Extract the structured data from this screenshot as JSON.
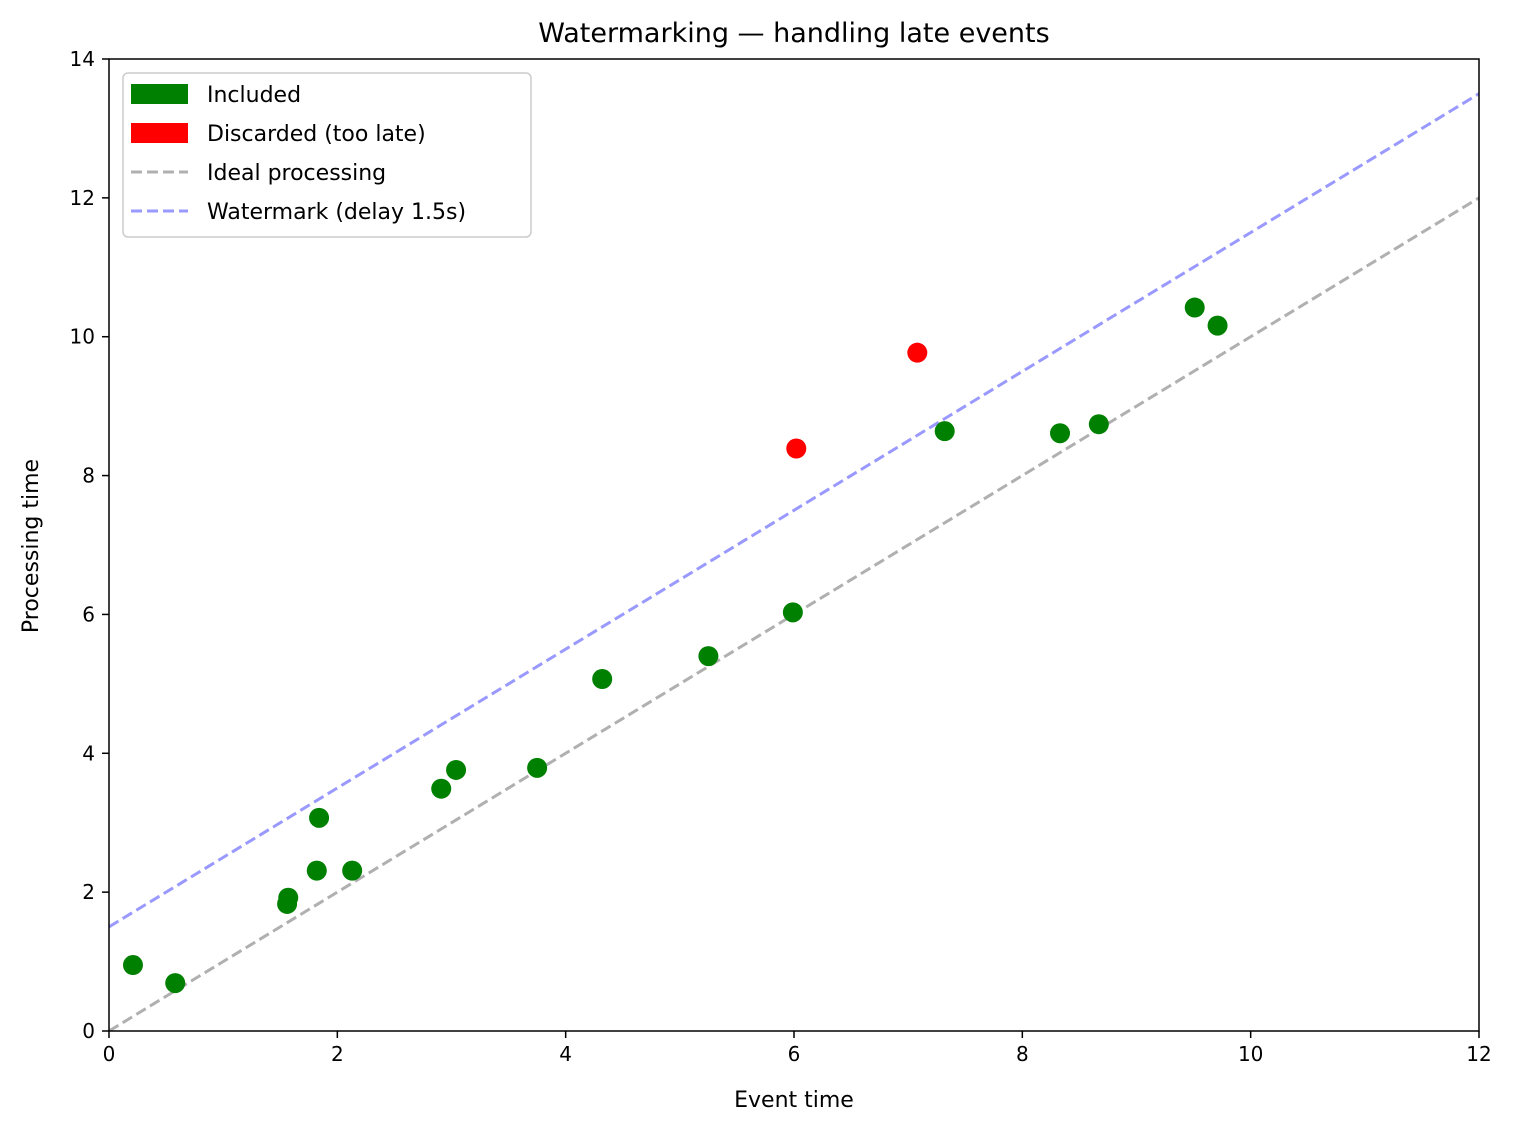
{
  "chart_data": {
    "type": "scatter",
    "title": "Watermarking — handling late events",
    "xlabel": "Event time",
    "ylabel": "Processing time",
    "xlim": [
      0,
      12
    ],
    "ylim": [
      0,
      14
    ],
    "xticks": [
      "0",
      "2",
      "4",
      "6",
      "8",
      "10",
      "12"
    ],
    "yticks": [
      "0",
      "2",
      "4",
      "6",
      "8",
      "10",
      "12",
      "14"
    ],
    "grid": false,
    "legend_position": "top-left",
    "colors": {
      "included": "#008000",
      "discarded": "#ff0000",
      "ideal": "#b0b0b0",
      "watermark": "#9999ff"
    },
    "series": [
      {
        "name": "Included",
        "kind": "points",
        "legend_marker": "patch",
        "x": [
          0.21,
          0.58,
          1.56,
          1.57,
          1.82,
          1.84,
          2.13,
          2.91,
          3.04,
          3.75,
          4.32,
          5.25,
          5.99,
          7.32,
          8.33,
          8.67,
          9.51,
          9.71
        ],
        "y": [
          0.95,
          0.69,
          1.83,
          1.92,
          2.31,
          3.07,
          2.31,
          3.49,
          3.76,
          3.79,
          5.07,
          5.4,
          6.03,
          8.64,
          8.61,
          8.74,
          10.42,
          10.16
        ]
      },
      {
        "name": "Discarded (too late)",
        "kind": "points",
        "legend_marker": "patch",
        "x": [
          6.02,
          7.08
        ],
        "y": [
          8.39,
          9.77
        ]
      },
      {
        "name": "Ideal processing",
        "kind": "line",
        "legend_marker": "dashed-line",
        "x": [
          0,
          12
        ],
        "y": [
          0,
          12
        ]
      },
      {
        "name": "Watermark (delay 1.5s)",
        "kind": "line",
        "legend_marker": "dashed-line",
        "x": [
          0,
          12
        ],
        "y": [
          1.5,
          13.5
        ]
      }
    ]
  }
}
